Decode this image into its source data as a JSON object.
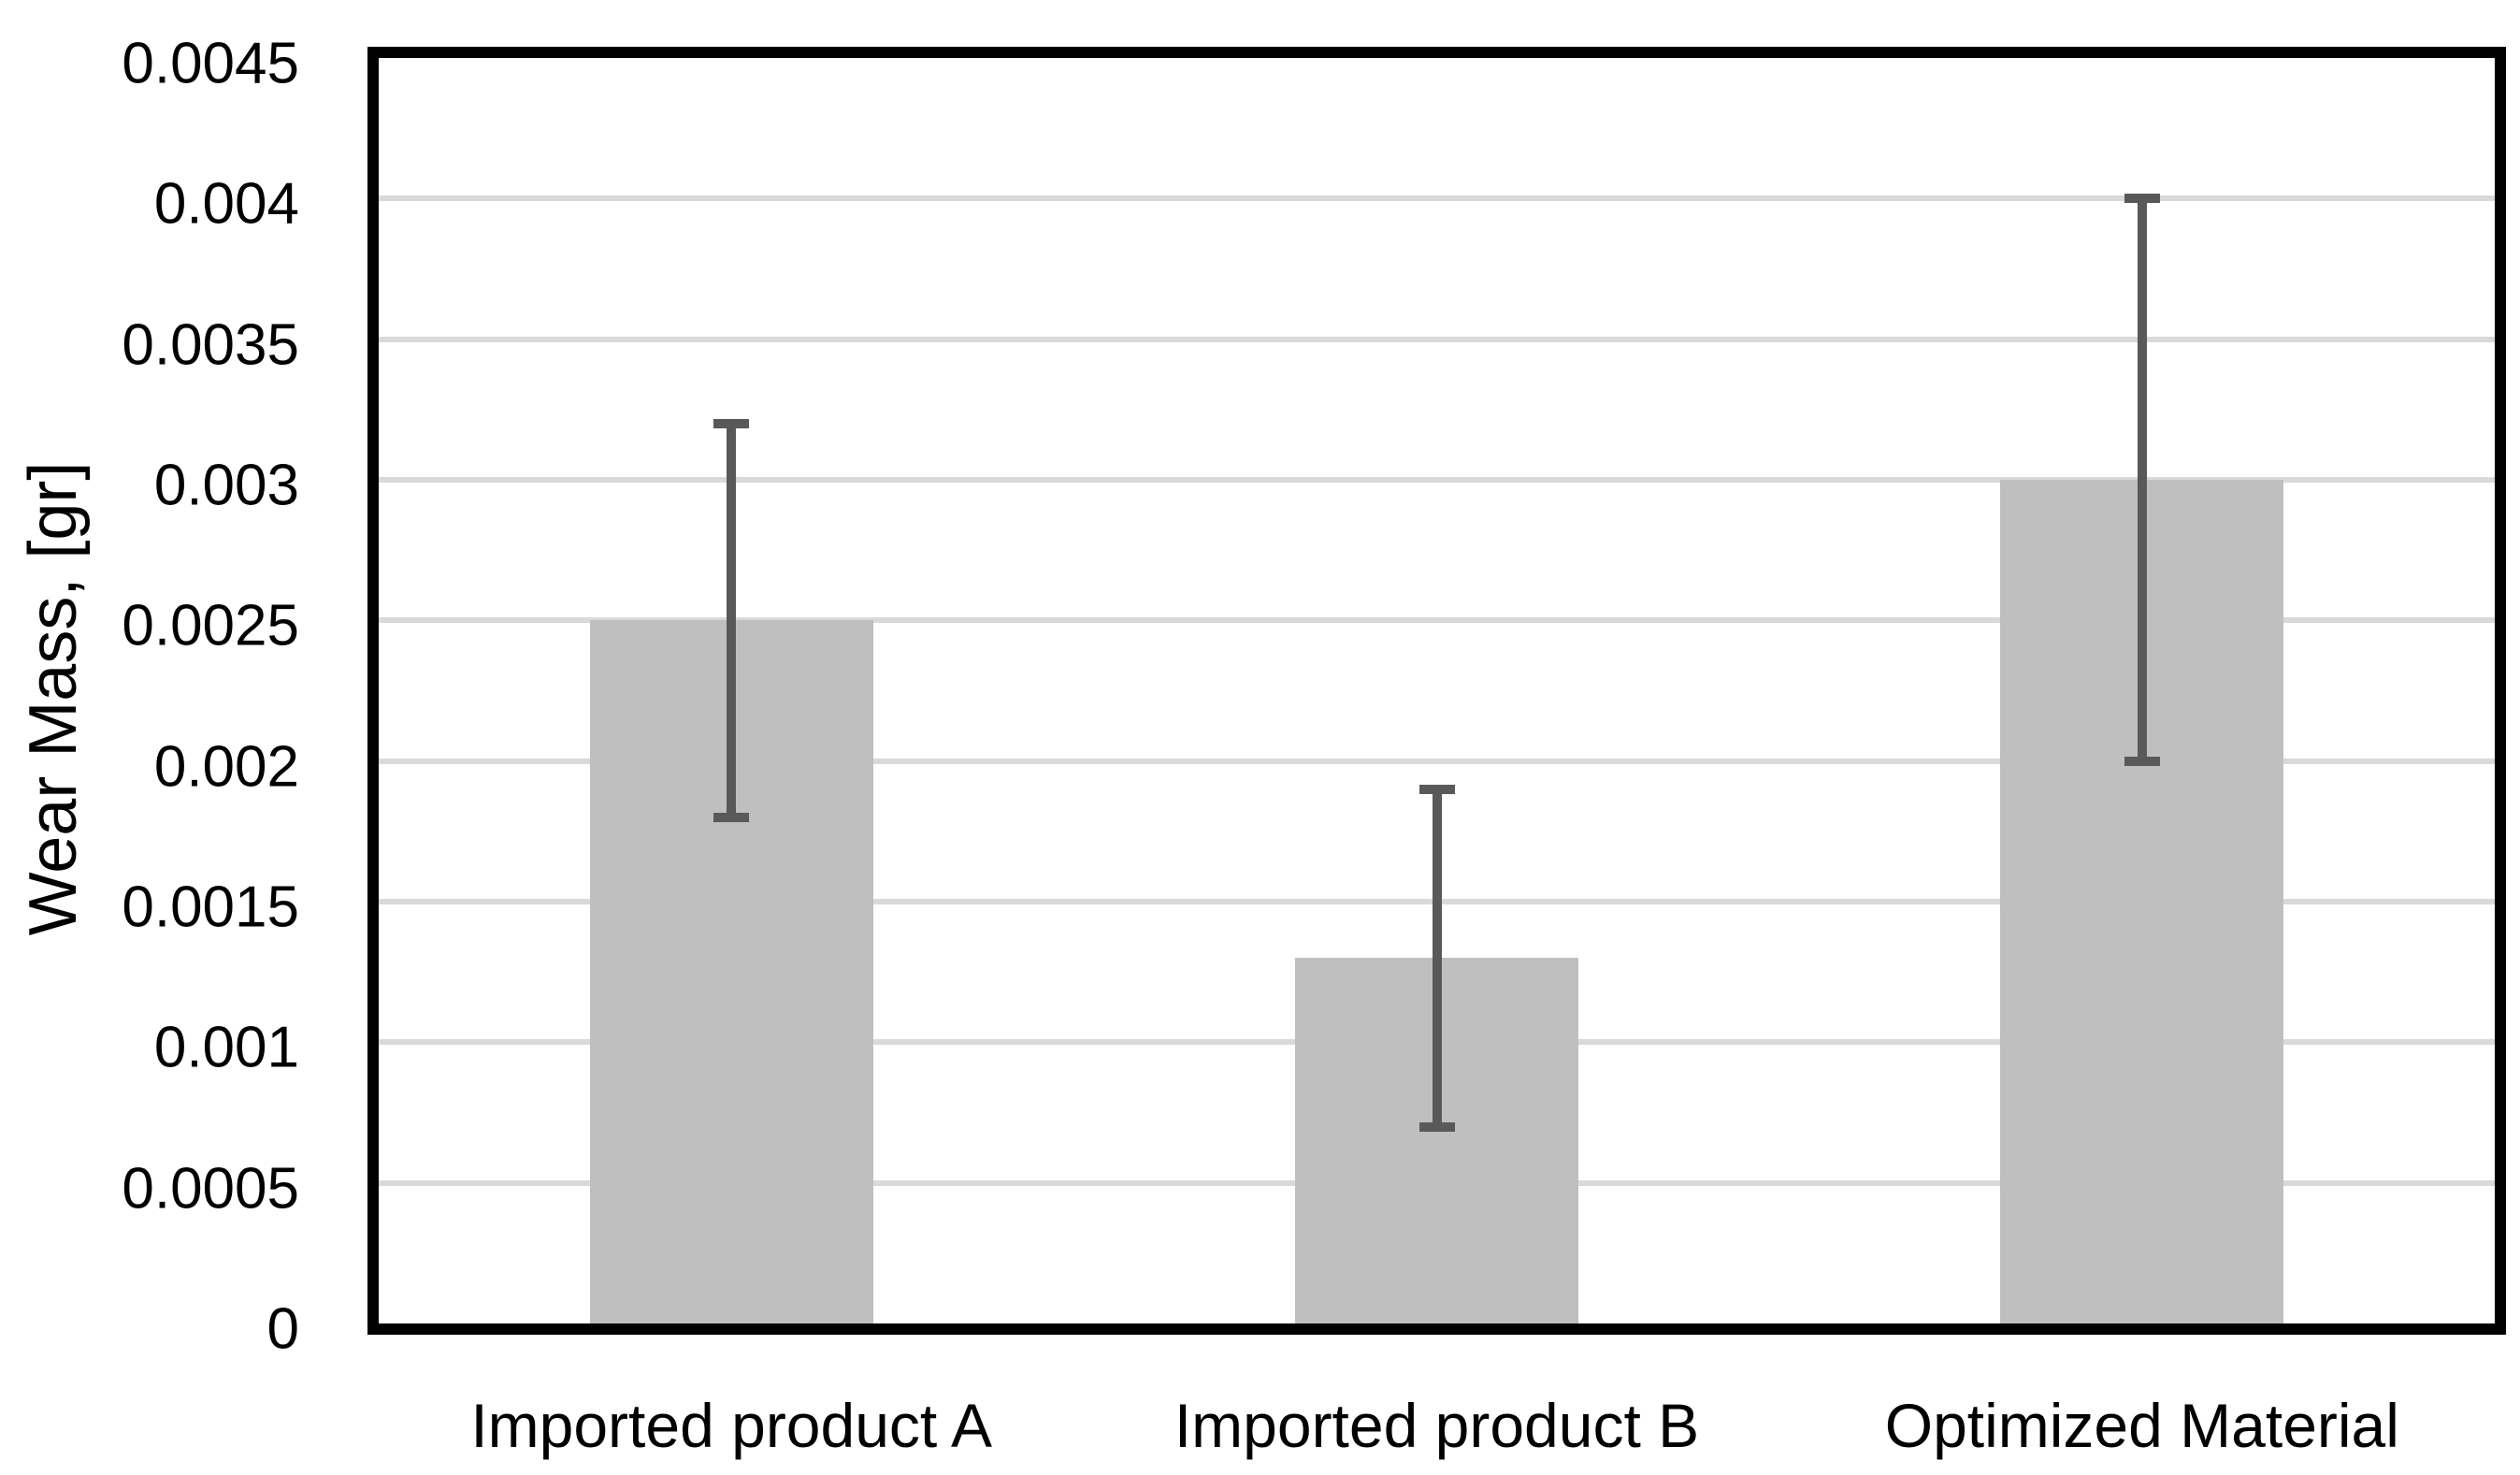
{
  "chart_data": {
    "type": "bar",
    "categories": [
      "Imported product A",
      "Imported product B",
      "Optimized Material"
    ],
    "values": [
      0.0025,
      0.0013,
      0.003
    ],
    "error_plus": [
      0.0007,
      0.0006,
      0.001
    ],
    "error_minus": [
      0.0007,
      0.0006,
      0.001
    ],
    "error_bar_tops": [
      0.0032,
      0.0019,
      0.004
    ],
    "error_bar_bottoms": [
      0.0018,
      0.0007,
      0.002
    ],
    "title": "",
    "xlabel": "",
    "ylabel": "Wear Mass, [gr]",
    "ylim": [
      0,
      0.0045
    ],
    "ytick_step": 0.0005,
    "ytick_values": [
      0,
      0.0005,
      0.001,
      0.0015,
      0.002,
      0.0025,
      0.003,
      0.0035,
      0.004,
      0.0045
    ],
    "ytick_labels": [
      "0",
      "0.0005",
      "0.001",
      "0.0015",
      "0.002",
      "0.0025",
      "0.003",
      "0.0035",
      "0.004",
      "0.0045"
    ],
    "grid": "horizontal",
    "legend": "none",
    "colors": {
      "bar_fill": "#bfbfbf",
      "error_bar": "#595959",
      "gridline": "#d9d9d9",
      "axis_border": "#000000",
      "background": "#ffffff",
      "text": "#000000"
    }
  }
}
